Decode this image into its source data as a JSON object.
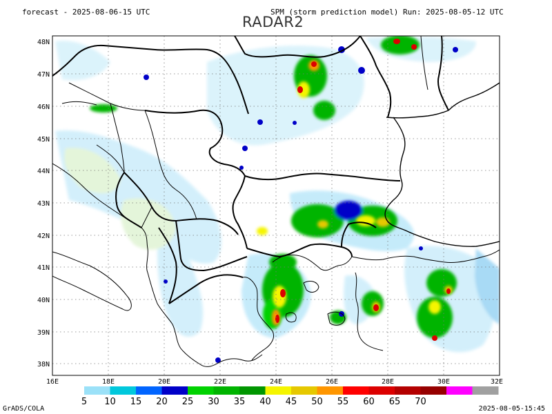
{
  "header": {
    "forecast": "forecast - 2025-08-06-15 UTC",
    "model_run": "SPM (storm prediction model) Run: 2025-08-05-12 UTC",
    "title": "RADAR2"
  },
  "map": {
    "lat_labels": [
      "48N",
      "47N",
      "46N",
      "45N",
      "44N",
      "43N",
      "42N",
      "41N",
      "40N",
      "39N",
      "38N"
    ],
    "lon_labels": [
      "16E",
      "18E",
      "20E",
      "22E",
      "24E",
      "26E",
      "28E",
      "30E",
      "32E"
    ]
  },
  "legend": {
    "colors": [
      "#9be1f8",
      "#00c8dc",
      "#0064ff",
      "#0000c8",
      "#00d200",
      "#00b400",
      "#009600",
      "#f5f500",
      "#e6c800",
      "#ff9600",
      "#ff0000",
      "#dc0000",
      "#b40000",
      "#960000",
      "#ff00ff",
      "#a0a0a0"
    ],
    "values": [
      "5",
      "10",
      "15",
      "20",
      "25",
      "30",
      "35",
      "40",
      "45",
      "50",
      "55",
      "60",
      "65",
      "70"
    ]
  },
  "footer": {
    "left": "GrADS/COLA",
    "right": "2025-08-05-15:45"
  }
}
